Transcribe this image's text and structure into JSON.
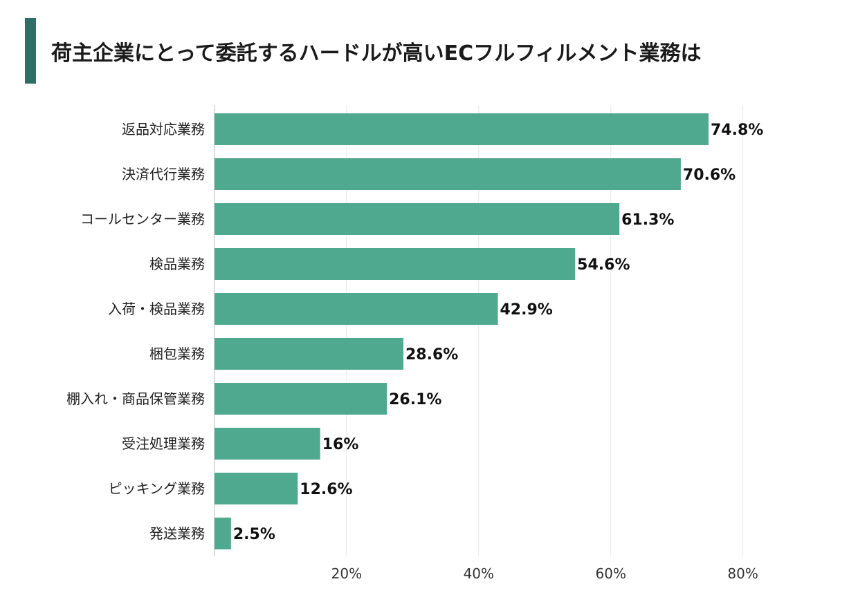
{
  "chart_data": {
    "type": "bar",
    "orientation": "horizontal",
    "title": "荷主企業にとって委託するハードルが高いECフルフィルメント業務は",
    "categories": [
      "返品対応業務",
      "決済代行業務",
      "コールセンター業務",
      "検品業務",
      "入荷・検品業務",
      "梱包業務",
      "棚入れ・商品保管業務",
      "受注処理業務",
      "ピッキング業務",
      "発送業務"
    ],
    "values": [
      74.8,
      70.6,
      61.3,
      54.6,
      42.9,
      28.6,
      26.1,
      16,
      12.6,
      2.5
    ],
    "value_labels": [
      "74.8%",
      "70.6%",
      "61.3%",
      "54.6%",
      "42.9%",
      "28.6%",
      "26.1%",
      "16%",
      "12.6%",
      "2.5%"
    ],
    "xlim": [
      0,
      88
    ],
    "xticks": [
      20,
      40,
      60,
      80
    ],
    "xtick_labels": [
      "20%",
      "40%",
      "60%",
      "80%"
    ],
    "grid": true,
    "colors": {
      "bar": "#4ea98f",
      "title_accent": "#2e6e67",
      "grid": "#e6e6e6",
      "axis": "#bbbbbb"
    }
  }
}
